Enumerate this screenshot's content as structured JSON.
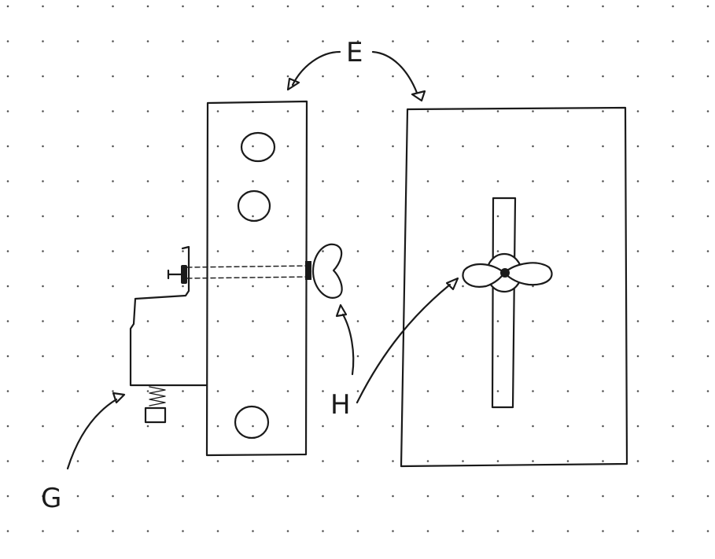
{
  "figure": {
    "labels": {
      "e": "E",
      "g": "G",
      "h": "H"
    },
    "colors": {
      "ink": "#1a1a1a",
      "paper": "#ffffff",
      "grid_dots": "#555555"
    }
  }
}
